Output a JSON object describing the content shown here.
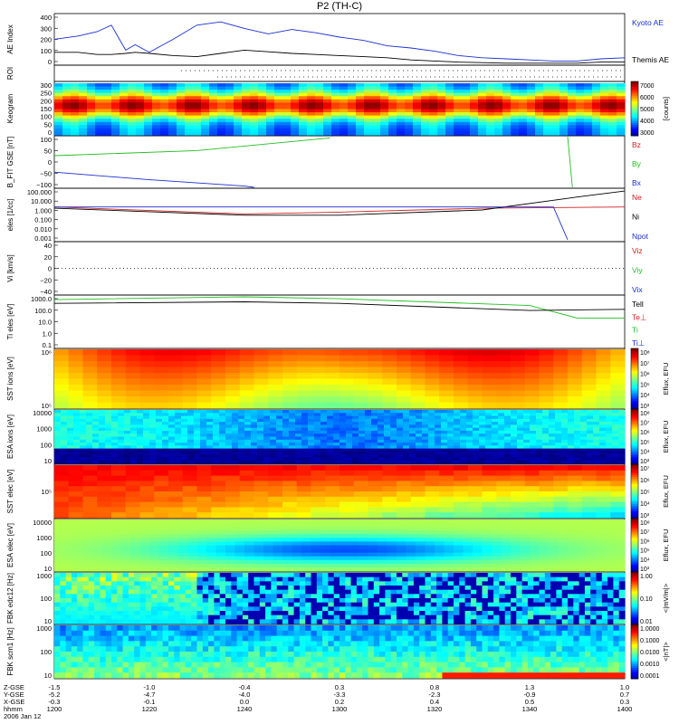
{
  "title": "P2 (TH-C)",
  "colors": {
    "blue": "#1a2fd0",
    "black": "#000000",
    "red": "#d22020",
    "green": "#20c020",
    "frame": "#000000"
  },
  "panels": [
    {
      "id": "ae",
      "ylabel": "AE Index",
      "ticks": [
        "400",
        "300",
        "200",
        "100",
        "0"
      ],
      "right_labels": [
        {
          "text": "Kyoto AE",
          "color": "#1a2fd0"
        },
        {
          "text": "Themis AE",
          "color": "#000000"
        }
      ]
    },
    {
      "id": "roi",
      "ylabel": "ROI",
      "ticks": [],
      "right_labels": []
    },
    {
      "id": "keo",
      "ylabel": "Keogram",
      "ticks": [
        "300",
        "250",
        "200",
        "150",
        "100",
        "50",
        "0"
      ],
      "colorbar": {
        "ticks": [
          "7000",
          "6000",
          "5000",
          "4000",
          "3000"
        ],
        "label": "[counts]"
      }
    },
    {
      "id": "bfit",
      "ylabel": "B_FIT GSE [nT]",
      "ticks": [
        "100",
        "50",
        "0",
        "−50",
        "−100"
      ],
      "right_labels": [
        {
          "text": "Bz",
          "color": "#d22020"
        },
        {
          "text": "By",
          "color": "#20c020"
        },
        {
          "text": "Bx",
          "color": "#1a2fd0"
        }
      ]
    },
    {
      "id": "dens",
      "ylabel": "eles [1/cc]",
      "ticks": [
        "100.000",
        "10.000",
        "1.000",
        "0.100",
        "0.010",
        "0.001"
      ],
      "right_labels": [
        {
          "text": "Ne",
          "color": "#d22020"
        },
        {
          "text": "Ni",
          "color": "#000000"
        },
        {
          "text": "Npot",
          "color": "#1a2fd0"
        }
      ]
    },
    {
      "id": "vi",
      "ylabel": "Vi [km/s]",
      "ticks": [
        "40",
        "20",
        "0",
        "−20",
        "−40"
      ],
      "right_labels": [
        {
          "text": "Viz",
          "color": "#d22020"
        },
        {
          "text": "Viy",
          "color": "#20c020"
        },
        {
          "text": "Vix",
          "color": "#1a2fd0"
        }
      ]
    },
    {
      "id": "temp",
      "ylabel": "Ti eles [eV]",
      "ticks": [
        "1000.0",
        "100.0",
        "10.0",
        "1.0",
        "0.1"
      ],
      "right_labels": [
        {
          "text": "Tell",
          "color": "#000000"
        },
        {
          "text": "Te⊥",
          "color": "#d22020"
        },
        {
          "text": "Ti",
          "color": "#20c020"
        },
        {
          "text": "Ti⊥",
          "color": "#1a2fd0"
        }
      ]
    },
    {
      "id": "ssti",
      "ylabel": "SST ions [eV]",
      "ticks": [
        "10⁶",
        "10⁵"
      ],
      "colorbar": {
        "ticks": [
          "10⁸",
          "10⁷",
          "10⁶",
          "10⁵",
          "10⁴",
          "10³"
        ],
        "label": "Eflux, EFU"
      }
    },
    {
      "id": "esai",
      "ylabel": "ESA ions [eV]",
      "ticks": [
        "10000",
        "1000",
        "100",
        "10"
      ],
      "colorbar": {
        "ticks": [
          "10⁸",
          "10⁷",
          "10⁶",
          "10⁵",
          "10⁴",
          "10³"
        ],
        "label": "Eflux, EFU"
      }
    },
    {
      "id": "sste",
      "ylabel": "SST elec [eV]",
      "ticks": [
        "10⁵"
      ],
      "colorbar": {
        "ticks": [
          "10⁷",
          "10⁶",
          "10⁵",
          "10⁴",
          "10³"
        ],
        "label": "Eflux, EFU"
      }
    },
    {
      "id": "esae",
      "ylabel": "ESA elec [eV]",
      "ticks": [
        "10000",
        "1000",
        "100",
        "10"
      ],
      "colorbar": {
        "ticks": [
          "10⁸",
          "10⁷",
          "10⁶",
          "10⁵",
          "10⁴",
          "10³"
        ],
        "label": "Eflux, EFU"
      }
    },
    {
      "id": "fbke",
      "ylabel": "FBK edc12 [Hz]",
      "ticks": [
        "1000",
        "100",
        "10"
      ],
      "colorbar": {
        "ticks": [
          "1.00",
          "0.10",
          "0.01"
        ],
        "label": "<|mV/m|>"
      }
    },
    {
      "id": "fbkb",
      "ylabel": "FBK scm1 [Hz]",
      "ticks": [
        "1000",
        "100",
        "10"
      ],
      "colorbar": {
        "ticks": [
          "1.0000",
          "0.1000",
          "0.0100",
          "0.0010",
          "0.0001"
        ],
        "label": "<|nT|>"
      }
    }
  ],
  "xaxis": {
    "row_labels": [
      "Z-GSE",
      "Y-GSE",
      "X-GSE",
      "hhmm",
      "2006 Jan 12"
    ],
    "columns": [
      [
        "-1.5",
        "-5.2",
        "-0.3",
        "1200"
      ],
      [
        "-1.0",
        "-4.7",
        "-0.1",
        "1220"
      ],
      [
        "-0.4",
        "-4.0",
        "0.0",
        "1240"
      ],
      [
        "0.3",
        "-3.3",
        "0.2",
        "1300"
      ],
      [
        "0.8",
        "-2.3",
        "0.4",
        "1320"
      ],
      [
        "1.3",
        "-0.9",
        "0.5",
        "1340"
      ],
      [
        "1.0",
        "0.7",
        "0.3",
        "1400"
      ]
    ]
  },
  "chart_data": [
    {
      "type": "line",
      "panel": "AE Index",
      "x": [
        1200,
        1205,
        1209,
        1212,
        1215,
        1217,
        1220,
        1225,
        1230,
        1235,
        1240,
        1245,
        1250,
        1255,
        1300,
        1305,
        1310,
        1315,
        1320,
        1325,
        1330,
        1335,
        1340,
        1345,
        1350,
        1355,
        1400
      ],
      "series": [
        {
          "name": "Kyoto AE",
          "values": [
            230,
            260,
            300,
            360,
            130,
            180,
            110,
            230,
            360,
            390,
            330,
            280,
            320,
            290,
            250,
            220,
            170,
            150,
            120,
            80,
            60,
            50,
            40,
            30,
            30,
            50,
            60
          ]
        },
        {
          "name": "Themis AE",
          "values": [
            110,
            110,
            90,
            90,
            100,
            110,
            100,
            80,
            70,
            100,
            130,
            115,
            100,
            90,
            80,
            70,
            60,
            40,
            30,
            20,
            15,
            10,
            10,
            10,
            10,
            20,
            20
          ]
        }
      ],
      "ylim": [
        0,
        450
      ]
    },
    {
      "type": "heatmap",
      "panel": "Keogram",
      "colorbar": [
        3000,
        7000
      ],
      "ylim": [
        0,
        300
      ]
    },
    {
      "type": "line",
      "panel": "B_FIT GSE",
      "series": [
        {
          "name": "By",
          "x": [
            1200,
            1230,
            1258
          ],
          "values": [
            25,
            45,
            95
          ]
        },
        {
          "name": "Bx",
          "x": [
            1200,
            1220,
            1240,
            1242
          ],
          "values": [
            -40,
            -70,
            -95,
            -100
          ]
        }
      ],
      "ylim": [
        -100,
        100
      ]
    },
    {
      "type": "line",
      "panel": "eles",
      "series": [
        {
          "name": "Ne",
          "x": [
            1200,
            1240,
            1300,
            1330,
            1400
          ],
          "values": [
            2,
            0.4,
            0.6,
            1.5,
            2
          ]
        },
        {
          "name": "Ni",
          "x": [
            1200,
            1240,
            1300,
            1330,
            1350,
            1400
          ],
          "values": [
            1.5,
            0.3,
            0.3,
            1,
            20,
            80
          ]
        },
        {
          "name": "Npot",
          "x": [
            1200,
            1300,
            1345,
            1348
          ],
          "values": [
            2,
            2,
            2,
            0.001
          ]
        }
      ],
      "ylim": [
        0.001,
        100
      ]
    },
    {
      "type": "line",
      "panel": "Ti eles",
      "series": [
        {
          "name": "Ti",
          "x": [
            1200,
            1240,
            1300,
            1340,
            1350,
            1400
          ],
          "values": [
            600,
            1000,
            700,
            200,
            20,
            20
          ]
        },
        {
          "name": "Tell",
          "x": [
            1200,
            1240,
            1300,
            1340,
            1400
          ],
          "values": [
            300,
            400,
            300,
            80,
            100
          ]
        }
      ],
      "ylim": [
        0.1,
        1000
      ]
    },
    {
      "type": "heatmap",
      "panel": "SST ions"
    },
    {
      "type": "heatmap",
      "panel": "ESA ions"
    },
    {
      "type": "heatmap",
      "panel": "SST elec"
    },
    {
      "type": "heatmap",
      "panel": "ESA elec"
    },
    {
      "type": "heatmap",
      "panel": "FBK edc12"
    },
    {
      "type": "heatmap",
      "panel": "FBK scm1"
    }
  ]
}
